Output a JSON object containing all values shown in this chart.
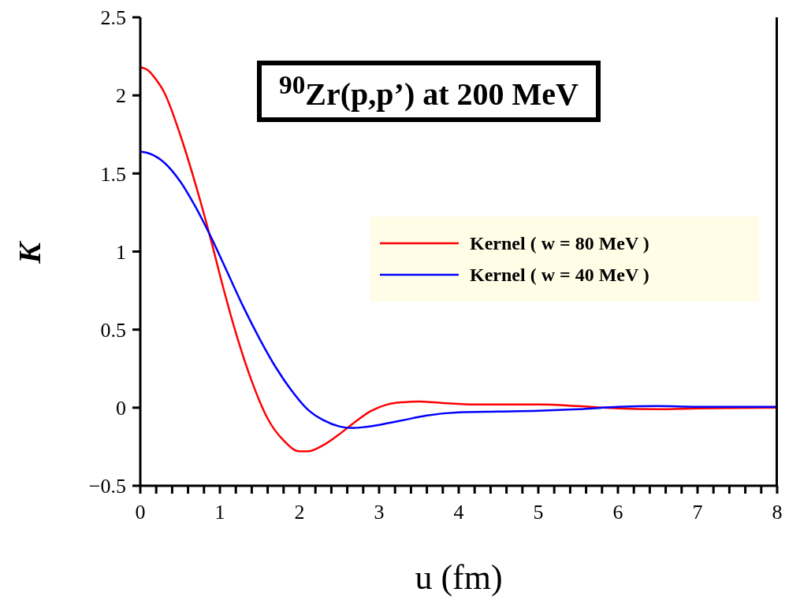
{
  "chart_data": {
    "type": "line",
    "xlabel": "u (fm)",
    "ylabel": "K",
    "annotations": [
      "$^{90}$Zr(p,p’) at 200 MeV"
    ],
    "xlim": [
      0,
      8
    ],
    "xticks": [
      0,
      {
        "value": 0.2,
        "label": null
      },
      {
        "value": 0.4,
        "label": null
      },
      {
        "value": 0.6,
        "label": null
      },
      {
        "value": 0.8,
        "label": null
      },
      1,
      {
        "value": 1.2,
        "label": null
      },
      {
        "value": 1.4,
        "label": null
      },
      {
        "value": 1.6,
        "label": null
      },
      {
        "value": 1.8,
        "label": null
      },
      2,
      {
        "value": 2.2,
        "label": null
      },
      {
        "value": 2.4,
        "label": null
      },
      {
        "value": 2.6,
        "label": null
      },
      {
        "value": 2.8,
        "label": null
      },
      3,
      {
        "value": 3.2,
        "label": null
      },
      {
        "value": 3.4,
        "label": null
      },
      {
        "value": 3.6,
        "label": null
      },
      {
        "value": 3.8,
        "label": null
      },
      4,
      {
        "value": 4.2,
        "label": null
      },
      {
        "value": 4.4,
        "label": null
      },
      {
        "value": 4.6,
        "label": null
      },
      {
        "value": 4.8,
        "label": null
      },
      5,
      {
        "value": 5.2,
        "label": null
      },
      {
        "value": 5.4,
        "label": null
      },
      {
        "value": 5.6,
        "label": null
      },
      {
        "value": 5.8,
        "label": null
      },
      6,
      {
        "value": 6.2,
        "label": null
      },
      {
        "value": 6.4,
        "label": null
      },
      {
        "value": 6.6,
        "label": null
      },
      {
        "value": 6.8,
        "label": null
      },
      7,
      {
        "value": 7.2,
        "label": null
      },
      {
        "value": 7.4,
        "label": null
      },
      {
        "value": 7.6,
        "label": null
      },
      {
        "value": 7.8,
        "label": null
      },
      8
    ],
    "ylim": [
      -0.5,
      2.5
    ],
    "yticks": [
      {
        "value": -0.5,
        "label": "−0.5"
      },
      0,
      0.5,
      1,
      1.5,
      2,
      2.5
    ],
    "legend": "right",
    "marker": "none",
    "line_style": "solid",
    "grid": false,
    "series": [
      {
        "name": "Kernel ( w = 80 MeV )",
        "color": "#ff0000",
        "x": [
          0,
          0.1,
          0.2,
          0.3,
          0.5,
          0.7,
          0.9,
          1.0,
          1.2,
          1.4,
          1.6,
          1.8,
          2.0,
          2.1,
          2.3,
          2.5,
          2.7,
          2.9,
          3.1,
          3.3,
          3.5,
          3.8,
          4.2,
          5,
          5.5,
          6,
          6.5,
          7,
          8
        ],
        "values": [
          2.18,
          2.16,
          2.1,
          2.02,
          1.75,
          1.42,
          1.05,
          0.85,
          0.48,
          0.17,
          -0.07,
          -0.21,
          -0.28,
          -0.28,
          -0.24,
          -0.17,
          -0.09,
          -0.02,
          0.02,
          0.035,
          0.04,
          0.03,
          0.02,
          0.02,
          0.01,
          -0.005,
          -0.01,
          -0.005,
          0
        ]
      },
      {
        "name": "Kernel ( w = 40 MeV )",
        "color": "#0000ff",
        "x": [
          0,
          0.1,
          0.3,
          0.5,
          0.7,
          0.9,
          1.1,
          1.3,
          1.5,
          1.7,
          1.9,
          2.1,
          2.3,
          2.5,
          2.65,
          2.8,
          3.0,
          3.3,
          3.6,
          4.0,
          4.5,
          5,
          5.5,
          6,
          6.5,
          7,
          8
        ],
        "values": [
          1.64,
          1.63,
          1.57,
          1.45,
          1.28,
          1.08,
          0.86,
          0.64,
          0.44,
          0.26,
          0.11,
          -0.01,
          -0.08,
          -0.12,
          -0.13,
          -0.125,
          -0.11,
          -0.08,
          -0.05,
          -0.03,
          -0.025,
          -0.02,
          -0.01,
          0.005,
          0.01,
          0.005,
          0.005
        ]
      }
    ]
  }
}
